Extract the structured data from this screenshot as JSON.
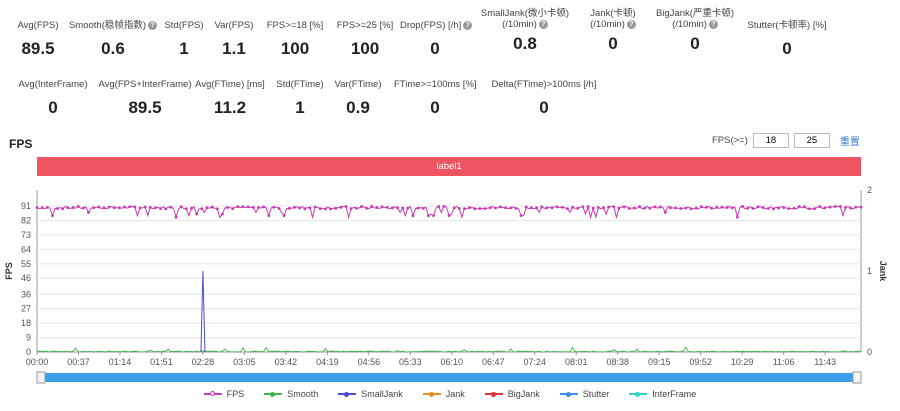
{
  "metrics_row1": [
    {
      "name": "metric-avg-fps",
      "label": "Avg(FPS)",
      "value": "89.5",
      "help": false
    },
    {
      "name": "metric-smooth",
      "label": "Smooth(稳帧指数)",
      "value": "0.6",
      "help": true
    },
    {
      "name": "metric-std-fps",
      "label": "Std(FPS)",
      "value": "1",
      "help": false
    },
    {
      "name": "metric-var-fps",
      "label": "Var(FPS)",
      "value": "1.1",
      "help": false
    },
    {
      "name": "metric-fps-18",
      "label": "FPS>=18 [%]",
      "value": "100",
      "help": false
    },
    {
      "name": "metric-fps-25",
      "label": "FPS>=25 [%]",
      "value": "100",
      "help": false
    },
    {
      "name": "metric-drop-fps",
      "label": "Drop(FPS) [/h]",
      "value": "0",
      "help": true
    },
    {
      "name": "metric-smalljank",
      "label": "SmallJank(微小卡顿)",
      "label2": "(/10min)",
      "value": "0.8",
      "help": true
    },
    {
      "name": "metric-jank",
      "label": "Jank(卡顿)",
      "label2": "(/10min)",
      "value": "0",
      "help": true
    },
    {
      "name": "metric-bigjank",
      "label": "BigJank(严重卡顿)",
      "label2": "(/10min)",
      "value": "0",
      "help": true
    },
    {
      "name": "metric-stutter",
      "label": "Stutter(卡顿率) [%]",
      "value": "0",
      "help": false
    }
  ],
  "metrics_row2": [
    {
      "name": "metric-avg-interframe",
      "label": "Avg(InterFrame)",
      "value": "0",
      "help": false
    },
    {
      "name": "metric-avg-fps-interframe",
      "label": "Avg(FPS+InterFrame)",
      "value": "89.5",
      "help": false
    },
    {
      "name": "metric-avg-ftime",
      "label": "Avg(FTime) [ms]",
      "value": "11.2",
      "help": false
    },
    {
      "name": "metric-std-ftime",
      "label": "Std(FTime)",
      "value": "1",
      "help": false
    },
    {
      "name": "metric-var-ftime",
      "label": "Var(FTime)",
      "value": "0.9",
      "help": false
    },
    {
      "name": "metric-ftime-100",
      "label": "FTime>=100ms [%]",
      "value": "0",
      "help": false
    },
    {
      "name": "metric-delta-ftime",
      "label": "Delta(FTime)>100ms [/h]",
      "value": "0",
      "help": false
    }
  ],
  "section_title": "FPS",
  "threshold": {
    "label": "FPS(>=)",
    "value1": "18",
    "value2": "25",
    "reset": "重置"
  },
  "label_bar": "label1",
  "colors": {
    "fps": "#c93bb5",
    "smooth": "#3fb54a",
    "smalljank": "#4a4fd0",
    "jank": "#f08a24",
    "bigjank": "#e0303a",
    "stutter": "#3a8ee6",
    "interframe": "#2ed4c6",
    "label_bar": "#ee5462",
    "scroll": "#3aa0ea"
  },
  "chart_data": {
    "type": "line",
    "x_ticks": [
      "00:00",
      "00:37",
      "01:14",
      "01:51",
      "02:28",
      "03:05",
      "03:42",
      "04:19",
      "04:56",
      "05:33",
      "06:10",
      "06:47",
      "07:24",
      "08:01",
      "08:38",
      "09:15",
      "09:52",
      "10:29",
      "11:06",
      "11:43"
    ],
    "x_range_seconds": [
      0,
      735
    ],
    "y_left": {
      "label": "FPS",
      "ticks": [
        "0",
        "9",
        "18",
        "27",
        "36",
        "46",
        "55",
        "64",
        "73",
        "82",
        "91"
      ],
      "range": [
        0,
        101
      ]
    },
    "y_right": {
      "label": "Jank",
      "ticks": [
        "0",
        "1",
        "2"
      ],
      "range": [
        0,
        2
      ]
    },
    "series": [
      {
        "name": "FPS",
        "color": "#c93bb5",
        "typical": 90,
        "dips": [
          84,
          85,
          86,
          87
        ]
      },
      {
        "name": "Smooth",
        "color": "#3fb54a",
        "typical": 0.6,
        "max": 3
      },
      {
        "name": "SmallJank",
        "color": "#4a4fd0",
        "spike": {
          "time": "02:28",
          "value": 1
        }
      },
      {
        "name": "Jank",
        "color": "#f08a24",
        "value": 0
      },
      {
        "name": "BigJank",
        "color": "#e0303a",
        "value": 0
      },
      {
        "name": "Stutter",
        "color": "#3a8ee6",
        "value": 0
      },
      {
        "name": "InterFrame",
        "color": "#2ed4c6",
        "value": 0
      }
    ],
    "legend_position": "bottom"
  }
}
